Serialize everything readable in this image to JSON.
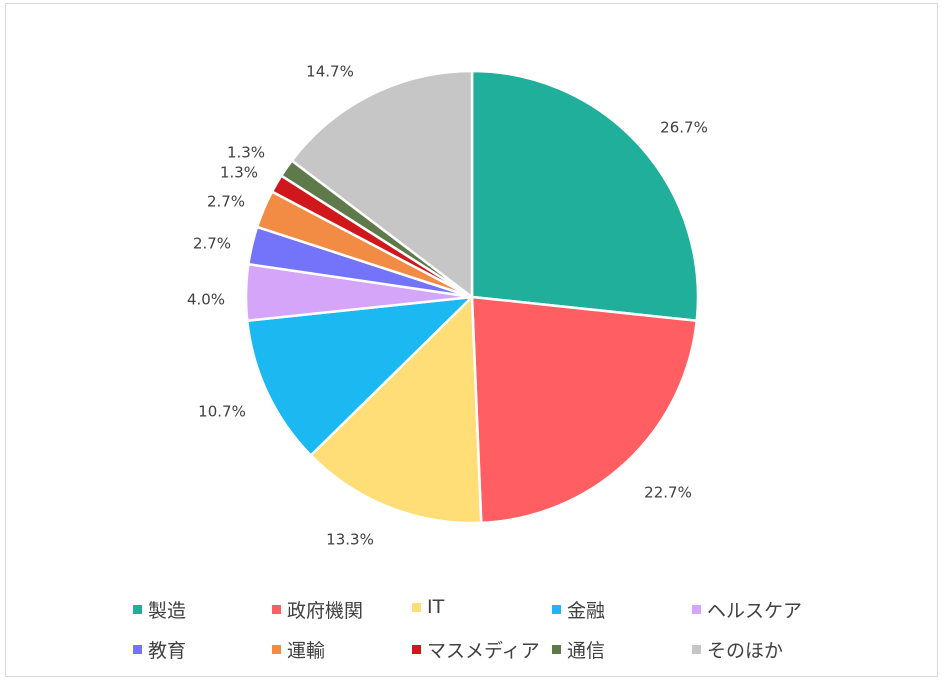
{
  "chart_data": {
    "type": "pie",
    "title": "",
    "start_angle": "top",
    "direction": "clockwise",
    "legend_position": "bottom",
    "slices": [
      {
        "name": "製造",
        "value": 26.7,
        "label": "26.7%",
        "color": "#1FAF9A"
      },
      {
        "name": "政府機関",
        "value": 22.7,
        "label": "22.7%",
        "color": "#FF5F62"
      },
      {
        "name": "IT",
        "value": 13.3,
        "label": "13.3%",
        "color": "#FFDD77"
      },
      {
        "name": "金融",
        "value": 10.7,
        "label": "10.7%",
        "color": "#1BB8F1"
      },
      {
        "name": "ヘルスケア",
        "value": 4.0,
        "label": "4.0%",
        "color": "#D5A5F9"
      },
      {
        "name": "教育",
        "value": 2.7,
        "label": "2.7%",
        "color": "#7474FA"
      },
      {
        "name": "運輸",
        "value": 2.7,
        "label": "2.7%",
        "color": "#F28C45"
      },
      {
        "name": "マスメディア",
        "value": 1.3,
        "label": "1.3%",
        "color": "#D0171C"
      },
      {
        "name": "通信",
        "value": 1.3,
        "label": "1.3%",
        "color": "#5F7A4A"
      },
      {
        "name": "そのほか",
        "value": 14.7,
        "label": "14.7%",
        "color": "#C6C6C6"
      }
    ]
  }
}
